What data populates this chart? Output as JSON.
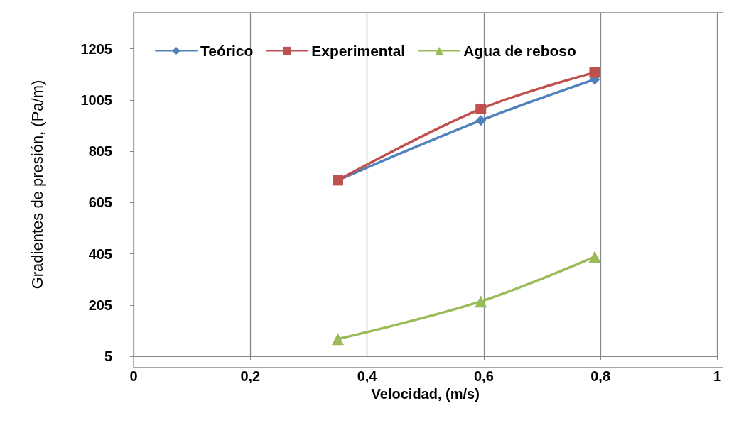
{
  "chart_data": {
    "type": "line",
    "xlabel": "Velocidad, (m/s)",
    "ylabel": "Gradientes de presión, (Pa/m)",
    "xlim": [
      0,
      1
    ],
    "xticks": [
      0,
      {
        "value": 0.2,
        "label": "0,2"
      },
      {
        "value": 0.4,
        "label": "0,4"
      },
      {
        "value": 0.6,
        "label": "0,6"
      },
      {
        "value": 0.8,
        "label": "0,8"
      },
      1
    ],
    "ylim": [
      5,
      1345
    ],
    "yticks": [
      5,
      205,
      405,
      605,
      805,
      1005,
      1205
    ],
    "x": [
      0.35,
      0.595,
      0.79
    ],
    "series": [
      {
        "name": "Teórico",
        "color": "#4f81bd",
        "marker": "diamond",
        "values": [
          692,
          925,
          1085
        ]
      },
      {
        "name": "Experimental",
        "color": "#c0504d",
        "marker": "square",
        "values": [
          692,
          970,
          1112
        ]
      },
      {
        "name": "Agua de reboso",
        "color": "#9bbb59",
        "marker": "triangle",
        "values": [
          72,
          219,
          393
        ]
      }
    ],
    "grid": "x",
    "legend": "top",
    "line_style": "solid"
  }
}
